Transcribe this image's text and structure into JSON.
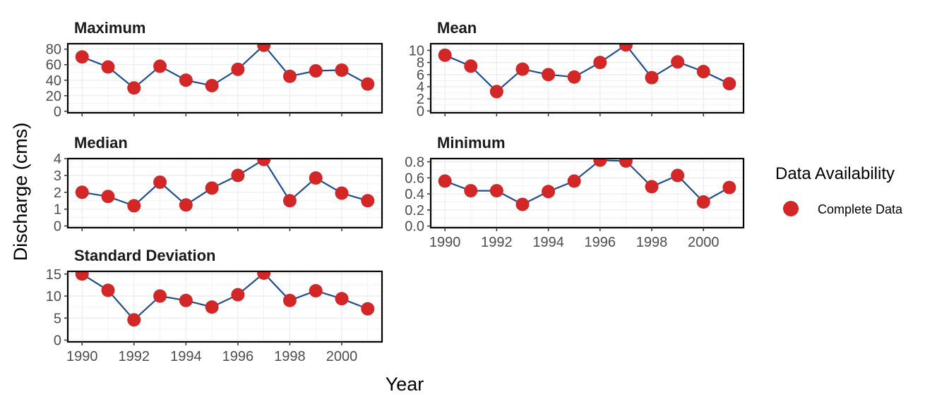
{
  "chart_data": {
    "type": "line",
    "xlabel": "Year",
    "ylabel": "Discharge (cms)",
    "legend": {
      "title": "Data Availability",
      "label": "Complete Data",
      "placement": "right"
    },
    "x": [
      1990,
      1991,
      1992,
      1993,
      1994,
      1995,
      1996,
      1997,
      1998,
      1999,
      2000,
      2001
    ],
    "x_ticks": [
      "1990",
      "1992",
      "1994",
      "1996",
      "1998",
      "2000"
    ],
    "colors": {
      "line": "#1f4e8c",
      "point": "#d32626",
      "grid": "#ebebeb"
    },
    "panels": [
      {
        "title": "Maximum",
        "values": [
          70,
          57,
          30,
          58,
          40,
          33,
          54,
          85,
          45,
          52,
          53,
          35
        ],
        "ylim": [
          -2,
          87
        ],
        "yticks": [
          0,
          20,
          40,
          60,
          80
        ],
        "ytick_labels": [
          "0",
          "20",
          "40",
          "60",
          "80"
        ],
        "show_x_ticks": false
      },
      {
        "title": "Mean",
        "values": [
          9.2,
          7.4,
          3.2,
          6.9,
          6.0,
          5.6,
          8.0,
          10.9,
          5.5,
          8.1,
          6.5,
          4.5
        ],
        "ylim": [
          -0.3,
          11.1
        ],
        "yticks": [
          0,
          2,
          4,
          6,
          8,
          10
        ],
        "ytick_labels": [
          "0",
          "2",
          "4",
          "6",
          "8",
          "10"
        ],
        "show_x_ticks": false
      },
      {
        "title": "Median",
        "values": [
          2.0,
          1.75,
          1.2,
          2.6,
          1.25,
          2.25,
          3.0,
          3.95,
          1.5,
          2.85,
          1.95,
          1.5
        ],
        "ylim": [
          -0.1,
          4.0
        ],
        "yticks": [
          0,
          1,
          2,
          3,
          4
        ],
        "ytick_labels": [
          "0",
          "1",
          "2",
          "3",
          "4"
        ],
        "show_x_ticks": false
      },
      {
        "title": "Minimum",
        "values": [
          0.56,
          0.44,
          0.44,
          0.27,
          0.43,
          0.56,
          0.82,
          0.81,
          0.49,
          0.63,
          0.3,
          0.48
        ],
        "ylim": [
          -0.02,
          0.84
        ],
        "yticks": [
          0.0,
          0.2,
          0.4,
          0.6,
          0.8
        ],
        "ytick_labels": [
          "0.0",
          "0.2",
          "0.4",
          "0.6",
          "0.8"
        ],
        "show_x_ticks": true
      },
      {
        "title": "Standard Deviation",
        "values": [
          15.0,
          11.3,
          4.6,
          10.0,
          9.0,
          7.5,
          10.3,
          15.2,
          9.0,
          11.2,
          9.4,
          7.1
        ],
        "ylim": [
          -0.4,
          15.6
        ],
        "yticks": [
          0,
          5,
          10,
          15
        ],
        "ytick_labels": [
          "0",
          "5",
          "10",
          "15"
        ],
        "show_x_ticks": true
      }
    ]
  }
}
